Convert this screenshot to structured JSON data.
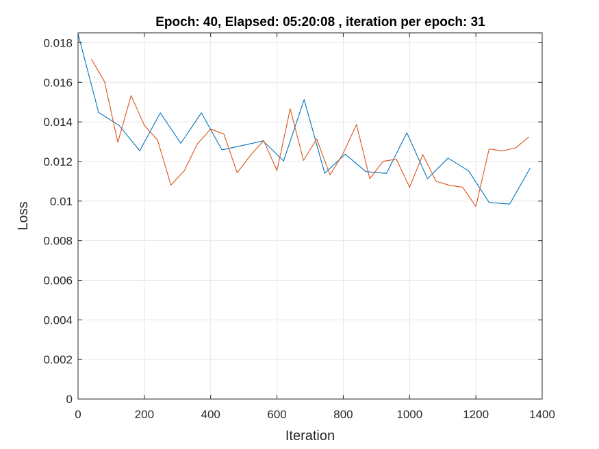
{
  "chart_data": {
    "type": "line",
    "title": "Epoch: 40, Elapsed: 05:20:08  , iteration per epoch: 31",
    "xlabel": "Iteration",
    "ylabel": "Loss",
    "xlim": [
      0,
      1400
    ],
    "ylim": [
      0,
      0.0185
    ],
    "xticks": [
      0,
      200,
      400,
      600,
      800,
      1000,
      1200,
      1400
    ],
    "xtick_labels": [
      "0",
      "200",
      "400",
      "600",
      "800",
      "1000",
      "1200",
      "1400"
    ],
    "yticks": [
      0,
      0.002,
      0.004,
      0.006,
      0.008,
      0.01,
      0.012,
      0.014,
      0.016,
      0.018
    ],
    "ytick_labels": [
      "0",
      "0.002",
      "0.004",
      "0.006",
      "0.008",
      "0.01",
      "0.012",
      "0.014",
      "0.016",
      "0.018"
    ],
    "grid": true,
    "series": [
      {
        "color": "#0072BD",
        "x": [
          0,
          62,
          124,
          186,
          248,
          310,
          372,
          434,
          496,
          558,
          620,
          682,
          744,
          806,
          868,
          930,
          992,
          1054,
          1116,
          1178,
          1240,
          1302,
          1364
        ],
        "y": [
          0.01845,
          0.01448,
          0.01382,
          0.01254,
          0.01446,
          0.01292,
          0.01446,
          0.01259,
          0.01281,
          0.01304,
          0.01203,
          0.01513,
          0.01141,
          0.01237,
          0.01149,
          0.0114,
          0.01345,
          0.01113,
          0.01217,
          0.01153,
          0.00993,
          0.00985,
          0.01168
        ]
      },
      {
        "color": "#D95319",
        "x": [
          40,
          80,
          120,
          160,
          200,
          240,
          280,
          320,
          360,
          400,
          440,
          480,
          520,
          560,
          600,
          640,
          680,
          720,
          760,
          800,
          840,
          880,
          920,
          960,
          1000,
          1040,
          1080,
          1120,
          1160,
          1200,
          1240,
          1280,
          1320,
          1360
        ],
        "y": [
          0.01718,
          0.01603,
          0.01297,
          0.01533,
          0.01383,
          0.01308,
          0.01081,
          0.01152,
          0.01289,
          0.01364,
          0.01338,
          0.01143,
          0.01231,
          0.01306,
          0.01154,
          0.01466,
          0.01206,
          0.01314,
          0.01132,
          0.01242,
          0.01387,
          0.01113,
          0.01201,
          0.01212,
          0.0107,
          0.01235,
          0.011,
          0.0108,
          0.0107,
          0.00973,
          0.01264,
          0.01253,
          0.01269,
          0.01324
        ]
      }
    ]
  }
}
